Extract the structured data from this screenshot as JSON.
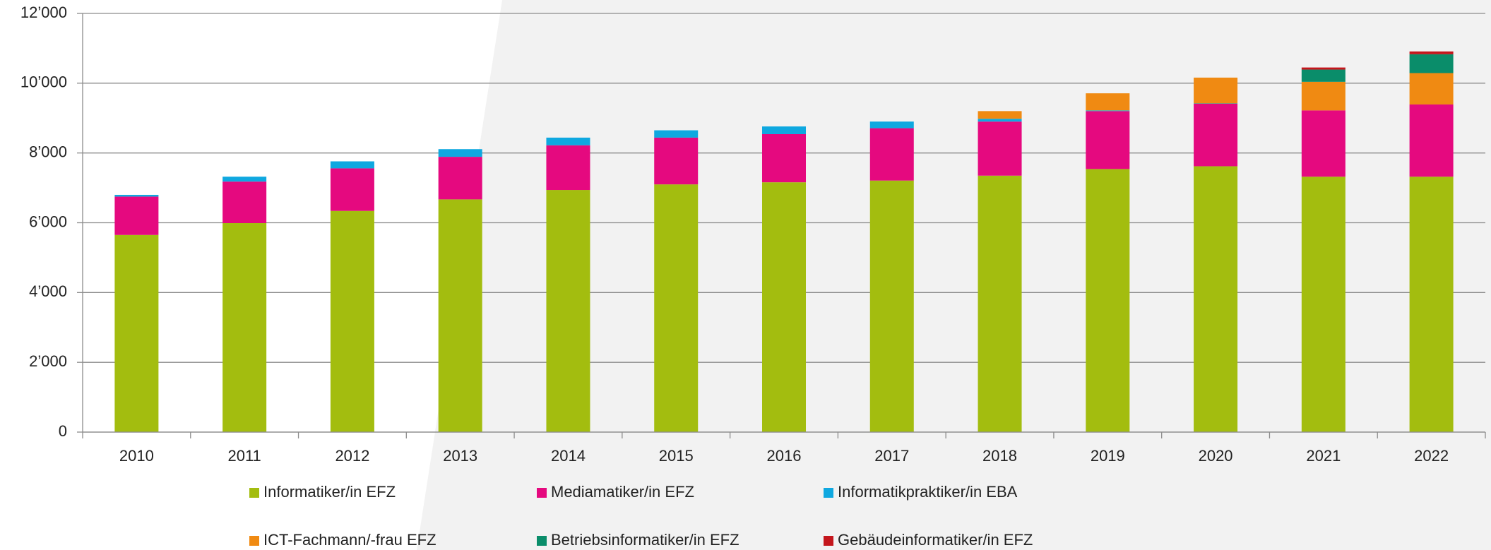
{
  "chart_data": {
    "type": "stacked-bar",
    "categories": [
      "2010",
      "2011",
      "2012",
      "2013",
      "2014",
      "2015",
      "2016",
      "2017",
      "2018",
      "2019",
      "2020",
      "2021",
      "2022"
    ],
    "series": [
      {
        "name": "Informatiker/in EFZ",
        "color": "#a3bd0f",
        "values": [
          5650,
          5990,
          6340,
          6670,
          6940,
          7100,
          7160,
          7210,
          7350,
          7540,
          7620,
          7320,
          7320
        ]
      },
      {
        "name": "Mediamatiker/in EFZ",
        "color": "#e5097f",
        "values": [
          1100,
          1190,
          1220,
          1220,
          1280,
          1340,
          1380,
          1500,
          1550,
          1660,
          1790,
          1900,
          2070
        ]
      },
      {
        "name": "Informatikpraktiker/in EBA",
        "color": "#0fa8e0",
        "values": [
          50,
          140,
          200,
          220,
          220,
          210,
          220,
          190,
          80,
          20,
          10,
          0,
          0
        ]
      },
      {
        "name": "ICT-Fachmann/-frau EFZ",
        "color": "#f08a12",
        "values": [
          0,
          0,
          0,
          0,
          0,
          0,
          0,
          0,
          220,
          490,
          740,
          820,
          900
        ]
      },
      {
        "name": "Betriebsinformatiker/in EFZ",
        "color": "#0a8d6a",
        "values": [
          0,
          0,
          0,
          0,
          0,
          0,
          0,
          0,
          0,
          0,
          0,
          350,
          540
        ]
      },
      {
        "name": "Gebäudeinformatiker/in EFZ",
        "color": "#c4161c",
        "values": [
          0,
          0,
          0,
          0,
          0,
          0,
          0,
          0,
          0,
          0,
          0,
          60,
          80
        ]
      }
    ],
    "ylim": [
      0,
      12000
    ],
    "yticks": [
      0,
      {
        "value": 2000,
        "label": "2’000"
      },
      {
        "value": 4000,
        "label": "4’000"
      },
      {
        "value": 6000,
        "label": "6’000"
      },
      {
        "value": 8000,
        "label": "8’000"
      },
      {
        "value": 10000,
        "label": "10’000"
      },
      {
        "value": 12000,
        "label": "12’000"
      }
    ],
    "grid": true
  }
}
